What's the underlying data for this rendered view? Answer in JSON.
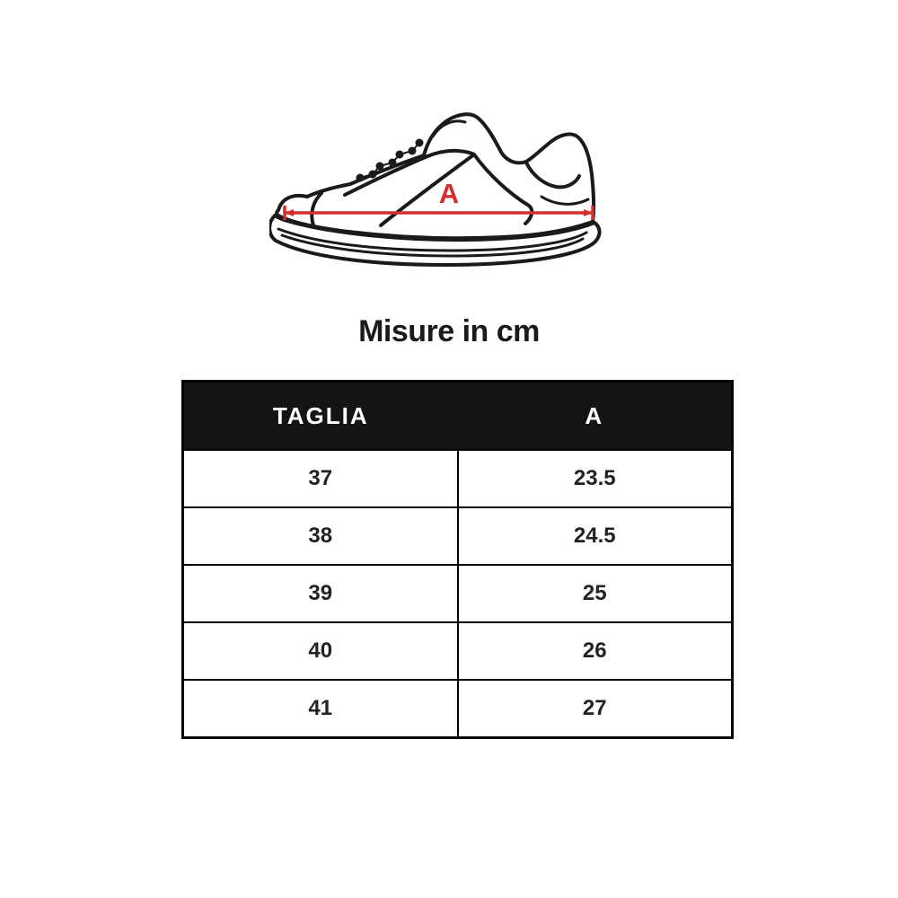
{
  "colors": {
    "accent_red": "#d32f2f",
    "ink": "#1a1a1a",
    "header_bg": "#141414",
    "header_text": "#ffffff",
    "cell_text": "#222222",
    "background": "#ffffff"
  },
  "illustration": {
    "name": "sneaker-side-view-line-drawing",
    "measurement_label": "A"
  },
  "title": "Misure in cm",
  "table": {
    "headers": [
      "TAGLIA",
      "A"
    ],
    "rows": [
      [
        "37",
        "23.5"
      ],
      [
        "38",
        "24.5"
      ],
      [
        "39",
        "25"
      ],
      [
        "40",
        "26"
      ],
      [
        "41",
        "27"
      ]
    ]
  },
  "chart_data": {
    "type": "table",
    "title": "Misure in cm",
    "units": "cm",
    "measure_label": "A",
    "columns": [
      "TAGLIA",
      "A"
    ],
    "rows": [
      [
        37,
        23.5
      ],
      [
        38,
        24.5
      ],
      [
        39,
        25
      ],
      [
        40,
        26
      ],
      [
        41,
        27
      ]
    ]
  }
}
